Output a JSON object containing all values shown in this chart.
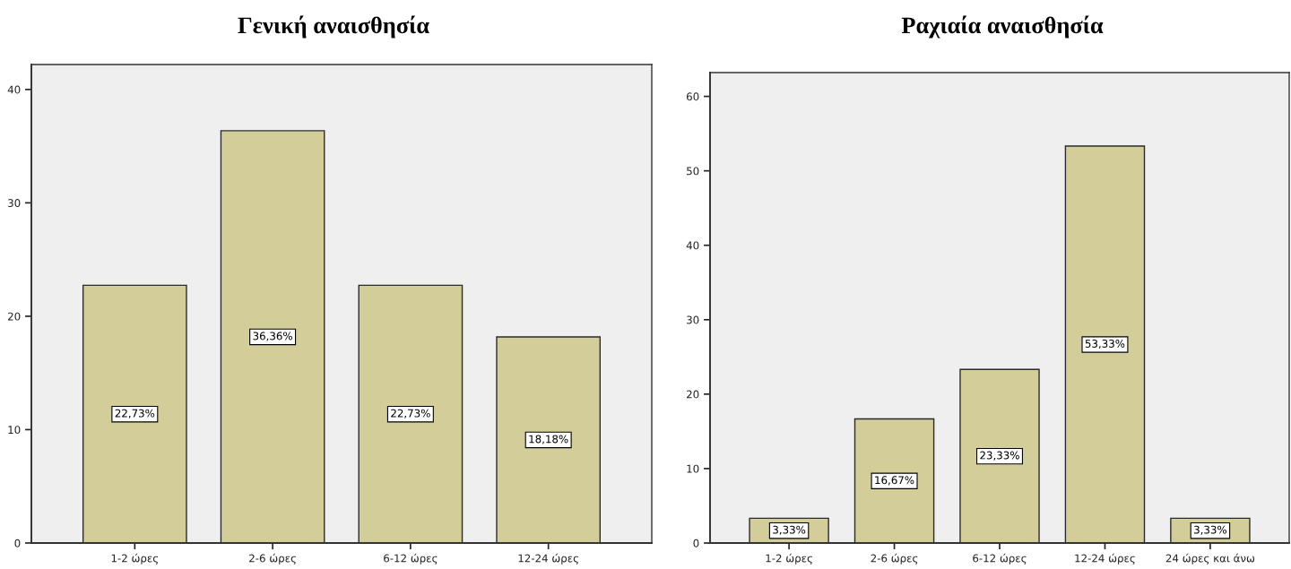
{
  "chart_data": [
    {
      "type": "bar",
      "title": "Γενική αναισθησία",
      "categories": [
        "1-2 ώρες",
        "2-6 ώρες",
        "6-12 ώρες",
        "12-24 ώρες"
      ],
      "values": [
        22.73,
        36.36,
        22.73,
        18.18
      ],
      "value_labels": [
        "22,73%",
        "36,36%",
        "22,73%",
        "18,18%"
      ],
      "color": "#d3ce99",
      "ylim": [
        0,
        42.2
      ],
      "yticks": [
        0,
        10,
        20,
        30,
        40
      ]
    },
    {
      "type": "bar",
      "title": "Ραχιαία αναισθησία",
      "categories": [
        "1-2 ώρες",
        "2-6 ώρες",
        "6-12 ώρες",
        "12-24 ώρες",
        "24 ώρες και άνω"
      ],
      "values": [
        3.33,
        16.67,
        23.33,
        53.33,
        3.33
      ],
      "value_labels": [
        "3,33%",
        "16,67%",
        "23,33%",
        "53,33%",
        "3,33%"
      ],
      "color": "#d3ce99",
      "ylim": [
        0,
        63.2
      ],
      "yticks": [
        0,
        10,
        20,
        30,
        40,
        50,
        60
      ]
    }
  ]
}
